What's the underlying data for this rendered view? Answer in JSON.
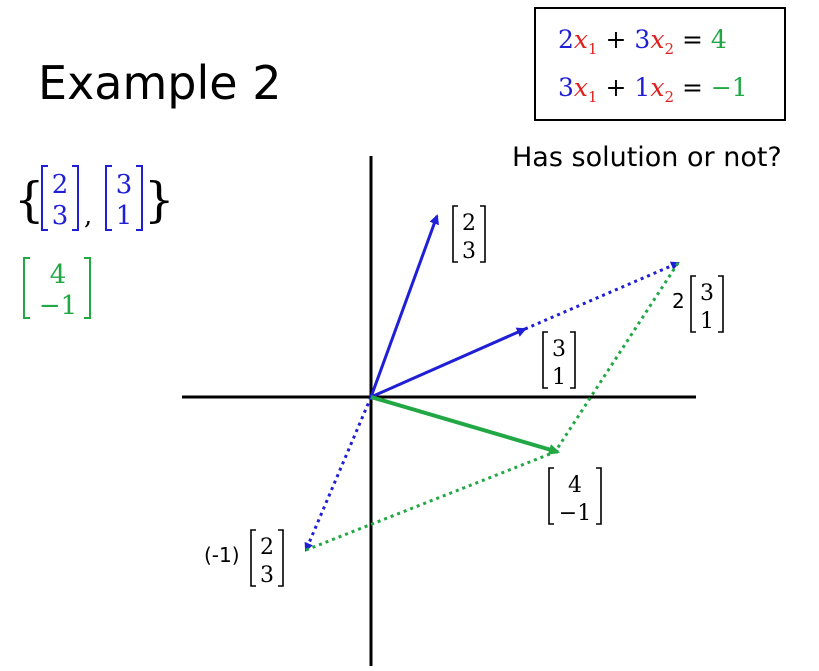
{
  "title": "Example 2",
  "question": "Has solution or not?",
  "equations": {
    "eq1": {
      "c1": "2",
      "x1": "x",
      "s1": "1",
      "op": "+",
      "c2": "3",
      "x2": "x",
      "s2": "2",
      "eq": "=",
      "rhs": "4"
    },
    "eq2": {
      "c1": "3",
      "x1": "x",
      "s1": "1",
      "op": "+",
      "c2": "1",
      "x2": "x",
      "s2": "2",
      "eq": "=",
      "rhs": "−1"
    }
  },
  "vector_set": {
    "v1_top": "2",
    "v1_bot": "3",
    "comma": ",",
    "v2_top": "3",
    "v2_bot": "1"
  },
  "target_vector": {
    "top": "4",
    "bot": "−1"
  },
  "labels": {
    "v23": {
      "top": "2",
      "bot": "3"
    },
    "v31": {
      "top": "3",
      "bot": "1"
    },
    "two_v31": {
      "coef": "2",
      "top": "3",
      "bot": "1"
    },
    "v4m1": {
      "top": "4",
      "bot": "−1"
    },
    "neg_v23": {
      "coef": "(-1)",
      "top": "2",
      "bot": "3"
    }
  },
  "colors": {
    "blue": "#1f1fd6",
    "red": "#e02020",
    "green": "#21a845",
    "black": "#000000"
  }
}
